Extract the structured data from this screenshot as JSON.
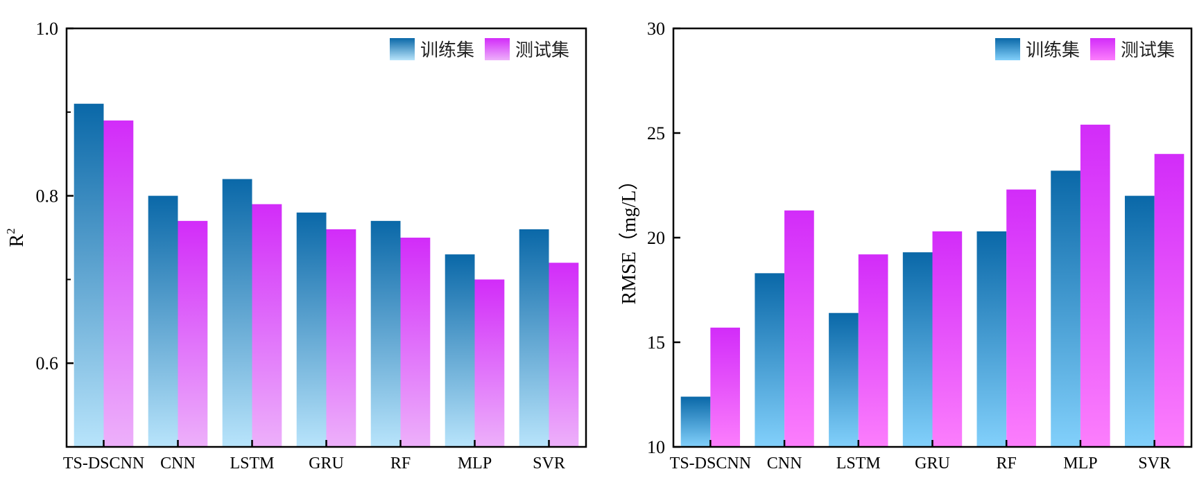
{
  "chart_data": [
    {
      "type": "bar",
      "title": "",
      "xlabel": "",
      "ylabel": "R",
      "ylabel_superscript": "2",
      "ylim": [
        0.5,
        1.0
      ],
      "yticks": [
        0.6,
        0.8,
        1.0
      ],
      "ytick_labels": [
        "0.6",
        "0.8",
        "1.0"
      ],
      "grid": false,
      "legend_position": "top-right",
      "categories": [
        "TS-DSCNN",
        "CNN",
        "LSTM",
        "GRU",
        "RF",
        "MLP",
        "SVR"
      ],
      "series": [
        {
          "name": "训练集",
          "values": [
            0.91,
            0.8,
            0.82,
            0.78,
            0.77,
            0.73,
            0.76
          ],
          "color_top": "#0a68a8",
          "color_bottom": "#b8e4fb"
        },
        {
          "name": "测试集",
          "values": [
            0.89,
            0.77,
            0.79,
            0.76,
            0.75,
            0.7,
            0.72
          ],
          "color_top": "#d22cf9",
          "color_bottom": "#edb0fa"
        }
      ]
    },
    {
      "type": "bar",
      "title": "",
      "xlabel": "",
      "ylabel": "RMSE（mg/L）",
      "ylim": [
        10,
        30
      ],
      "yticks": [
        10,
        15,
        20,
        25,
        30
      ],
      "ytick_labels": [
        "10",
        "15",
        "20",
        "25",
        "30"
      ],
      "grid": false,
      "legend_position": "top-right",
      "categories": [
        "TS-DSCNN",
        "CNN",
        "LSTM",
        "GRU",
        "RF",
        "MLP",
        "SVR"
      ],
      "series": [
        {
          "name": "训练集",
          "values": [
            12.4,
            18.3,
            16.4,
            19.3,
            20.3,
            23.2,
            22.0
          ],
          "color_top": "#0a68a8",
          "color_bottom": "#82d0fb"
        },
        {
          "name": "测试集",
          "values": [
            15.7,
            21.3,
            19.2,
            20.3,
            22.3,
            25.4,
            24.0
          ],
          "color_top": "#d22cf9",
          "color_bottom": "#fc7efc"
        }
      ]
    }
  ]
}
